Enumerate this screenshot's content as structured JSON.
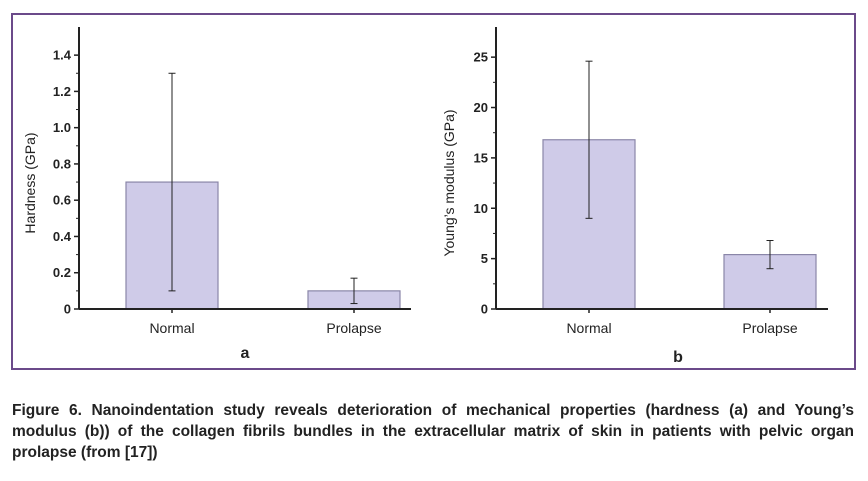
{
  "caption": "Figure 6. Nanoindentation study reveals deterioration of mechanical properties (hardness (a) and Young’s modulus (b)) of the collagen fibrils bundles in the extracellular matrix of skin in patients with pelvic organ prolapse (from [17])",
  "colors": {
    "bar_fill": "#cfcbe8",
    "bar_stroke": "#8a86a8",
    "frame": "#6b4a8a",
    "axis": "#222222"
  },
  "chart_data": [
    {
      "type": "bar",
      "panel_label": "a",
      "categories": [
        "Normal",
        "Prolapse"
      ],
      "values": [
        0.7,
        0.1
      ],
      "error_low": [
        0.1,
        0.03
      ],
      "error_high": [
        1.3,
        0.17
      ],
      "ylabel": "Hardness (GPa)",
      "xlabel": "",
      "ylim": [
        0,
        1.5
      ],
      "yticks": [
        0,
        0.2,
        0.4,
        0.6,
        0.8,
        1.0,
        1.2,
        1.4
      ],
      "ytick_labels": [
        "0",
        "0.2",
        "0.4",
        "0.6",
        "0.8",
        "1.0",
        "1.2",
        "1.4"
      ],
      "grid": false
    },
    {
      "type": "bar",
      "panel_label": "b",
      "categories": [
        "Normal",
        "Prolapse"
      ],
      "values": [
        16.8,
        5.4
      ],
      "error_low": [
        9.0,
        4.0
      ],
      "error_high": [
        24.6,
        6.8
      ],
      "ylabel": "Young’s modulus (GPa)",
      "xlabel": "",
      "ylim": [
        0,
        27
      ],
      "yticks": [
        0,
        5,
        10,
        15,
        20,
        25
      ],
      "ytick_labels": [
        "0",
        "5",
        "10",
        "15",
        "20",
        "25"
      ],
      "grid": false
    }
  ]
}
